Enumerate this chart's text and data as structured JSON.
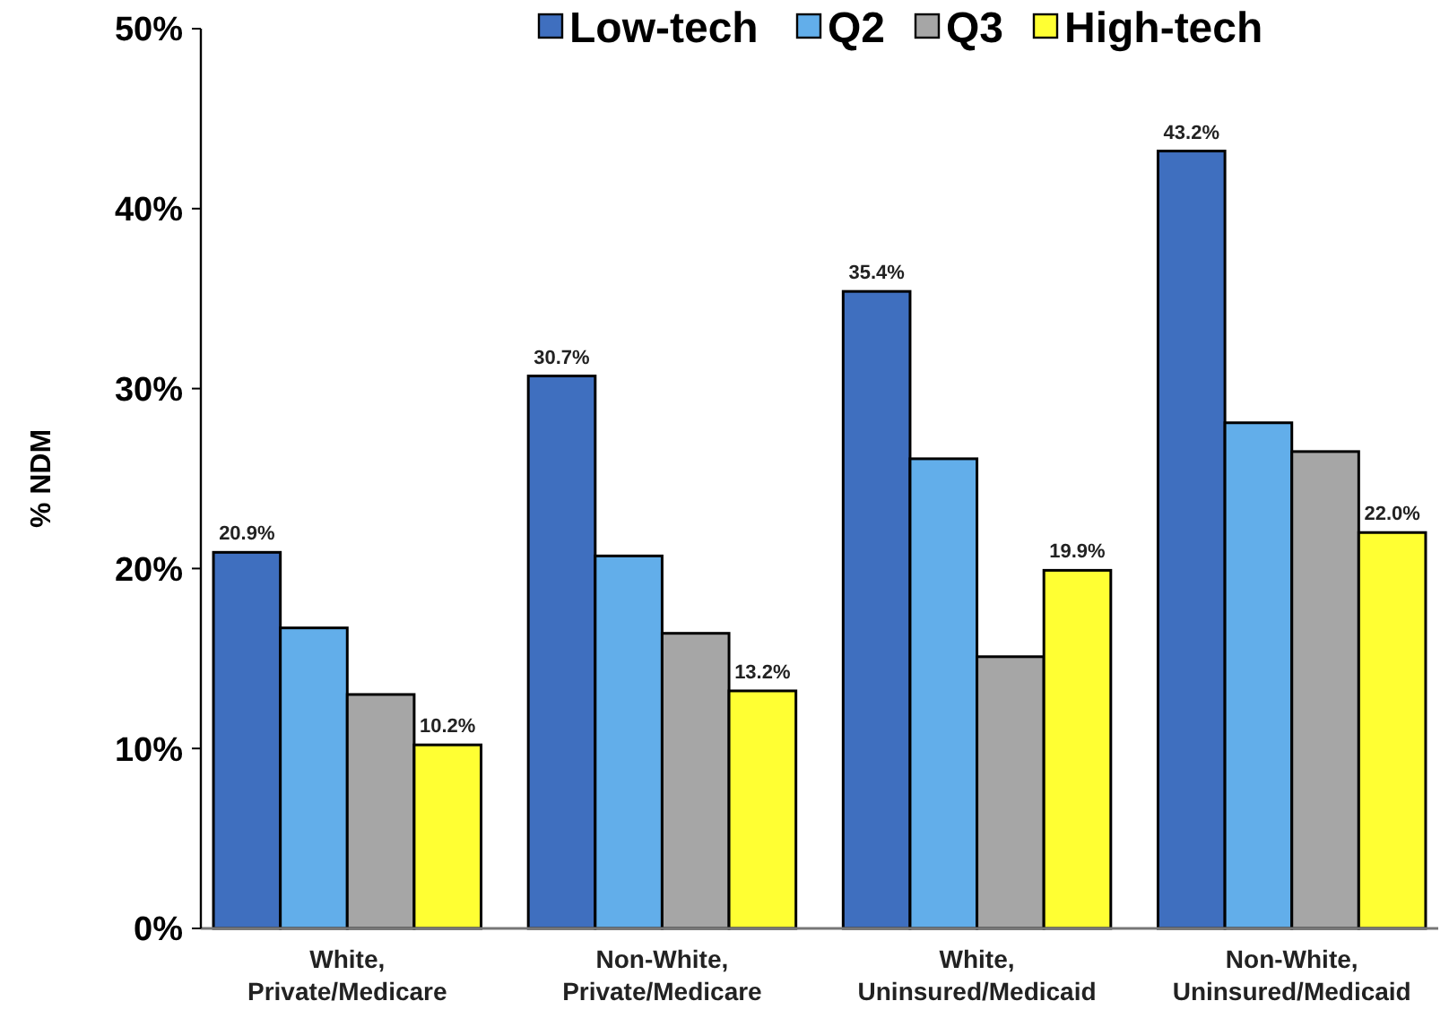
{
  "chart_data": {
    "type": "bar",
    "ylabel": "% NDM",
    "categories": [
      "White,\nPrivate/Medicare",
      "Non-White,\nPrivate/Medicare",
      "White,\nUninsured/Medicaid",
      "Non-White,\nUninsured/Medicaid"
    ],
    "series": [
      {
        "name": "Low-tech",
        "color": "#3f6fbf",
        "values": [
          20.9,
          30.7,
          35.4,
          43.2
        ],
        "value_labels": [
          "20.9%",
          "30.7%",
          "35.4%",
          "43.2%"
        ]
      },
      {
        "name": "Q2",
        "color": "#62aeea",
        "values": [
          16.7,
          20.7,
          26.1,
          28.1
        ]
      },
      {
        "name": "Q3",
        "color": "#a6a6a6",
        "values": [
          13.0,
          16.4,
          15.1,
          26.5
        ]
      },
      {
        "name": "High-tech",
        "color": "#ffff33",
        "values": [
          10.2,
          13.2,
          19.9,
          22.0
        ],
        "value_labels": [
          "10.2%",
          "13.2%",
          "19.9%",
          "22.0%"
        ]
      }
    ],
    "ylim": [
      0,
      50
    ],
    "yticks": [
      {
        "value": 0,
        "label": "0%"
      },
      {
        "value": 10,
        "label": "10%"
      },
      {
        "value": 20,
        "label": "20%"
      },
      {
        "value": 30,
        "label": "30%"
      },
      {
        "value": 40,
        "label": "40%"
      },
      {
        "value": 50,
        "label": "50%"
      }
    ],
    "legend": "top",
    "grid": false
  }
}
